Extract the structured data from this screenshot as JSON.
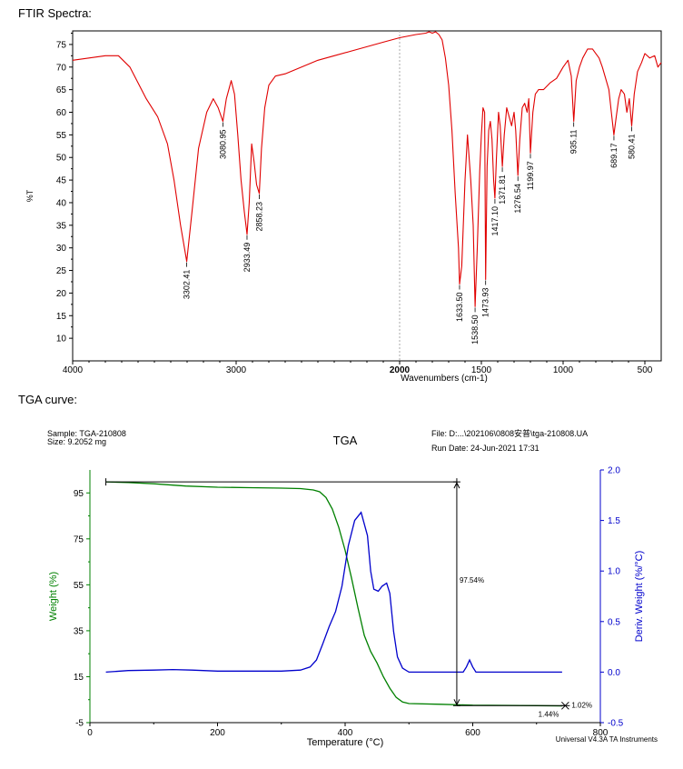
{
  "headings": {
    "ftir": "FTIR Spectra:",
    "tga": "TGA curve:"
  },
  "chart_data": [
    {
      "type": "line",
      "xlabel": "Wavenumbers (cm-1)",
      "ylabel": "%T",
      "xlim": [
        4000,
        400
      ],
      "ylim": [
        5,
        78
      ],
      "x_ticks": [
        "4000",
        "3000",
        "2000",
        "1500",
        "1000",
        "500"
      ],
      "y_ticks": [
        "10",
        "15",
        "20",
        "25",
        "30",
        "35",
        "40",
        "45",
        "50",
        "55",
        "60",
        "65",
        "70",
        "75"
      ],
      "color": "#e00000",
      "series": [
        {
          "x": [
            4000,
            3900,
            3800,
            3720,
            3650,
            3550,
            3480,
            3420,
            3380,
            3340,
            3302.41,
            3270,
            3230,
            3180,
            3140,
            3110,
            3080.95,
            3060,
            3030,
            3010,
            2990,
            2970,
            2950,
            2933.49,
            2920,
            2905,
            2890,
            2875,
            2858.23,
            2845,
            2825,
            2800,
            2760,
            2700,
            2600,
            2500,
            2400,
            2300,
            2200,
            2100,
            2000,
            1900,
            1840,
            1820,
            1800,
            1780,
            1760,
            1740,
            1720,
            1700,
            1680,
            1660,
            1640,
            1633.5,
            1620,
            1600,
            1585,
            1565,
            1550,
            1538.5,
            1525,
            1510,
            1500,
            1490,
            1480,
            1473.93,
            1465,
            1455,
            1445,
            1435,
            1425,
            1417.1,
            1408,
            1395,
            1385,
            1371.81,
            1360,
            1345,
            1330,
            1315,
            1300,
            1290,
            1276.54,
            1265,
            1250,
            1235,
            1220,
            1210,
            1199.97,
            1185,
            1170,
            1150,
            1120,
            1080,
            1040,
            1000,
            970,
            950,
            935.11,
            920,
            900,
            880,
            850,
            820,
            800,
            780,
            760,
            740,
            720,
            705,
            689.17,
            675,
            660,
            645,
            625,
            610,
            595,
            580.41,
            565,
            545,
            520,
            500,
            470,
            440,
            420,
            400
          ],
          "y": [
            71.5,
            72,
            72.5,
            72.5,
            70,
            63,
            59,
            53,
            45,
            35,
            27,
            38,
            52,
            60,
            63,
            61,
            58,
            63,
            67,
            64,
            55,
            45,
            38,
            33,
            40,
            53,
            49,
            44,
            42,
            52,
            61,
            66,
            68,
            68.5,
            70,
            71.5,
            72.5,
            73.5,
            74.5,
            75.5,
            76.5,
            77.2,
            77.5,
            77.8,
            77.5,
            77.8,
            77.2,
            76,
            72,
            66,
            56,
            42,
            30,
            22,
            26,
            45,
            55,
            45,
            35,
            17,
            30,
            47,
            55,
            61,
            60,
            23,
            48,
            56,
            58,
            54,
            45,
            41,
            50,
            60,
            57,
            48,
            55,
            61,
            59,
            57,
            60,
            56,
            46,
            54,
            61,
            62,
            60,
            63,
            51,
            60,
            64,
            65,
            65,
            66.5,
            67.5,
            70,
            71.5,
            68,
            58,
            67,
            70,
            72,
            74,
            74,
            73,
            72,
            70,
            67.5,
            65,
            60,
            55,
            59,
            63,
            65,
            64,
            60,
            63,
            57,
            64,
            69,
            71,
            73,
            72,
            72.5,
            70,
            71
          ]
        }
      ],
      "annotations": [
        {
          "text": "3302.41",
          "x": 3302.41,
          "y": 27
        },
        {
          "text": "3080.95",
          "x": 3080.95,
          "y": 58
        },
        {
          "text": "2933.49",
          "x": 2933.49,
          "y": 33
        },
        {
          "text": "2858.23",
          "x": 2858.23,
          "y": 42
        },
        {
          "text": "1633.50",
          "x": 1633.5,
          "y": 22
        },
        {
          "text": "1538.50",
          "x": 1538.5,
          "y": 17
        },
        {
          "text": "1473.93",
          "x": 1473.93,
          "y": 23
        },
        {
          "text": "1417.10",
          "x": 1417.1,
          "y": 41
        },
        {
          "text": "1371.81",
          "x": 1371.81,
          "y": 48
        },
        {
          "text": "1276.54",
          "x": 1276.54,
          "y": 46
        },
        {
          "text": "1199.97",
          "x": 1199.97,
          "y": 51
        },
        {
          "text": "935.11",
          "x": 935.11,
          "y": 58
        },
        {
          "text": "689.17",
          "x": 689.17,
          "y": 55
        },
        {
          "text": "580.41",
          "x": 580.41,
          "y": 57
        }
      ]
    },
    {
      "type": "line",
      "title": "TGA",
      "header_left": [
        "Sample: TGA-210808",
        "Size:  9.2052 mg"
      ],
      "header_right": [
        "File: D:...\\202106\\0808安普\\tga-210808.UA",
        "Run Date: 24-Jun-2021 17:31"
      ],
      "xlabel": "Temperature (°C)",
      "ylabel": "Weight (%)",
      "y2label": "Deriv. Weight (%/°C)",
      "xlim": [
        0,
        800
      ],
      "ylim": [
        -5,
        105
      ],
      "y2lim": [
        -0.5,
        2.0
      ],
      "x_ticks": [
        "0",
        "200",
        "400",
        "600",
        "800"
      ],
      "y_ticks": [
        "-5",
        "15",
        "35",
        "55",
        "75",
        "95"
      ],
      "y2_ticks": [
        "-0.5",
        "0.0",
        "0.5",
        "1.0",
        "1.5",
        "2.0"
      ],
      "footer": "Universal V4.3A TA Instruments",
      "series": [
        {
          "color": "#008000",
          "x": [
            25,
            60,
            100,
            150,
            200,
            250,
            300,
            330,
            350,
            360,
            370,
            380,
            390,
            400,
            410,
            420,
            430,
            440,
            450,
            460,
            470,
            480,
            490,
            500,
            550,
            600,
            650,
            700,
            740
          ],
          "y": [
            99.8,
            99.5,
            99,
            98,
            97.5,
            97.3,
            97.1,
            96.9,
            96.3,
            95.5,
            93,
            88,
            80,
            70,
            58,
            45,
            33,
            26,
            21,
            15,
            10,
            6,
            4,
            3.3,
            3,
            2.6,
            2.5,
            2.4,
            2.3
          ]
        },
        {
          "color": "#0000cc",
          "x": [
            25,
            60,
            100,
            130,
            160,
            200,
            250,
            300,
            330,
            345,
            355,
            365,
            375,
            385,
            395,
            405,
            415,
            425,
            435,
            440,
            445,
            452,
            458,
            465,
            470,
            476,
            482,
            490,
            500,
            520,
            560,
            585,
            590,
            595,
            600,
            605,
            620,
            680,
            740
          ],
          "y": [
            0.0,
            0.015,
            0.02,
            0.025,
            0.02,
            0.01,
            0.01,
            0.01,
            0.02,
            0.05,
            0.12,
            0.28,
            0.45,
            0.6,
            0.85,
            1.25,
            1.5,
            1.58,
            1.35,
            1.0,
            0.82,
            0.8,
            0.85,
            0.88,
            0.78,
            0.4,
            0.15,
            0.04,
            0.0,
            0.0,
            0.0,
            0.0,
            0.05,
            0.12,
            0.05,
            0.0,
            0.0,
            0.0,
            0.0
          ]
        }
      ],
      "annotations": {
        "step_label": "97.54%",
        "left_label": "1.44%",
        "right_label": "1.02%",
        "top_y": 99.8,
        "bottom_y": 2.4,
        "x_start": 25,
        "x_mid": 575,
        "x_end": 745
      }
    }
  ]
}
